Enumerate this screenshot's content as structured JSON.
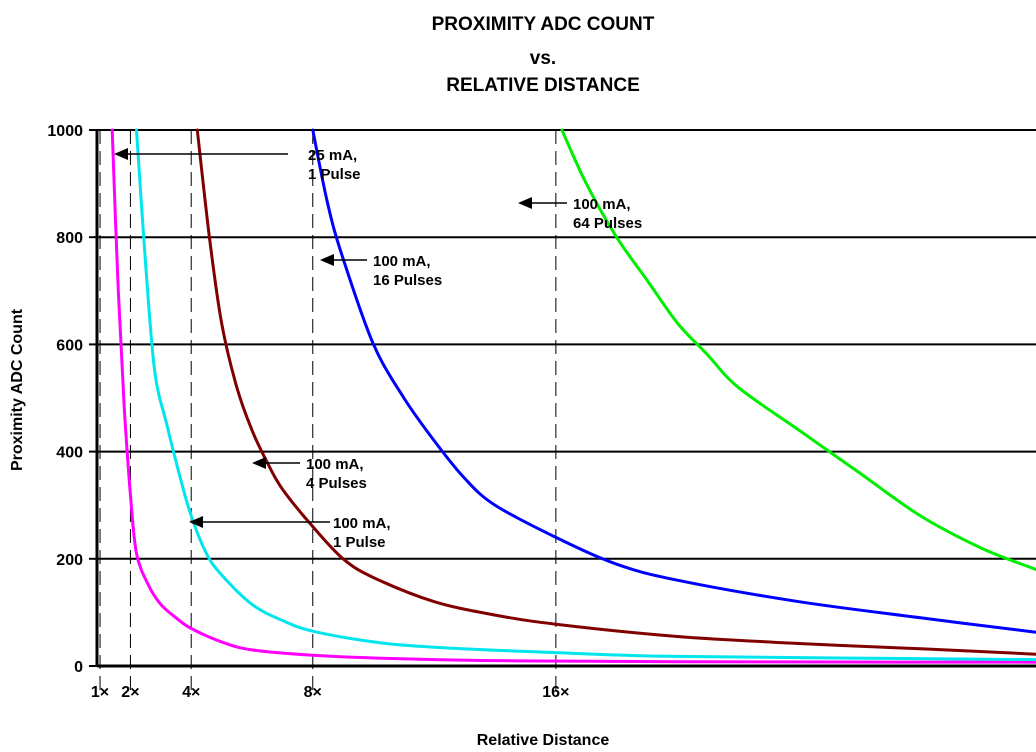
{
  "chart_data": {
    "type": "line",
    "title": [
      "PROXIMITY ADC COUNT",
      "vs.",
      "RELATIVE DISTANCE"
    ],
    "xlabel": "Relative Distance",
    "ylabel": "Proximity ADC Count",
    "xlim": [
      0.9,
      31.8
    ],
    "ylim": [
      0,
      1000
    ],
    "yticks": [
      0,
      200,
      400,
      600,
      800,
      1000
    ],
    "xticks": [
      {
        "value": 1,
        "label": "1×"
      },
      {
        "value": 2,
        "label": "2×"
      },
      {
        "value": 4,
        "label": "4×"
      },
      {
        "value": 8,
        "label": "8×"
      },
      {
        "value": 16,
        "label": "16×"
      }
    ],
    "grid": {
      "horizontal": true,
      "vertical_dashed_at": [
        1,
        2,
        4,
        8,
        16
      ]
    },
    "series": [
      {
        "name": "25 mA, 1 Pulse",
        "color": "#ff00ff",
        "points": [
          [
            1.4,
            1000
          ],
          [
            1.6,
            700
          ],
          [
            1.8,
            480
          ],
          [
            2.0,
            320
          ],
          [
            2.2,
            210
          ],
          [
            2.6,
            150
          ],
          [
            3.0,
            115
          ],
          [
            3.5,
            90
          ],
          [
            4.0,
            70
          ],
          [
            5.0,
            45
          ],
          [
            6.0,
            30
          ],
          [
            8.0,
            20
          ],
          [
            10.0,
            15
          ],
          [
            14.0,
            10
          ],
          [
            20.0,
            8
          ],
          [
            31.8,
            7
          ]
        ]
      },
      {
        "name": "100 mA, 1 Pulse",
        "color": "#00e5ee",
        "points": [
          [
            2.2,
            1000
          ],
          [
            2.5,
            750
          ],
          [
            2.8,
            550
          ],
          [
            3.2,
            450
          ],
          [
            3.6,
            360
          ],
          [
            4.0,
            280
          ],
          [
            4.5,
            210
          ],
          [
            5.0,
            170
          ],
          [
            6.0,
            115
          ],
          [
            7.0,
            85
          ],
          [
            8.0,
            65
          ],
          [
            10.0,
            45
          ],
          [
            12.0,
            35
          ],
          [
            16.0,
            25
          ],
          [
            20.0,
            18
          ],
          [
            31.8,
            12
          ]
        ]
      },
      {
        "name": "100 mA, 4 Pulses",
        "color": "#800000",
        "points": [
          [
            4.2,
            1000
          ],
          [
            4.6,
            800
          ],
          [
            5.0,
            640
          ],
          [
            5.5,
            520
          ],
          [
            6.0,
            440
          ],
          [
            6.5,
            380
          ],
          [
            7.0,
            330
          ],
          [
            8.0,
            260
          ],
          [
            9.0,
            200
          ],
          [
            10.0,
            165
          ],
          [
            12.0,
            120
          ],
          [
            14.0,
            95
          ],
          [
            16.0,
            78
          ],
          [
            20.0,
            55
          ],
          [
            24.0,
            42
          ],
          [
            28.0,
            32
          ],
          [
            31.8,
            22
          ]
        ]
      },
      {
        "name": "100 mA, 16 Pulses",
        "color": "#0000ff",
        "points": [
          [
            8.0,
            1000
          ],
          [
            8.5,
            860
          ],
          [
            9.0,
            760
          ],
          [
            10.0,
            600
          ],
          [
            11.0,
            500
          ],
          [
            12.0,
            420
          ],
          [
            13.0,
            350
          ],
          [
            14.0,
            300
          ],
          [
            16.0,
            240
          ],
          [
            18.0,
            190
          ],
          [
            20.0,
            160
          ],
          [
            24.0,
            120
          ],
          [
            28.0,
            90
          ],
          [
            31.8,
            63
          ]
        ]
      },
      {
        "name": "100 mA, 64 Pulses",
        "color": "#00ee00",
        "points": [
          [
            16.2,
            1000
          ],
          [
            17.0,
            900
          ],
          [
            18.0,
            800
          ],
          [
            19.0,
            720
          ],
          [
            20.0,
            640
          ],
          [
            21.0,
            580
          ],
          [
            22.0,
            520
          ],
          [
            24.0,
            440
          ],
          [
            26.0,
            360
          ],
          [
            28.0,
            280
          ],
          [
            30.0,
            220
          ],
          [
            31.8,
            180
          ]
        ]
      }
    ],
    "annotations": [
      {
        "lines": [
          "25 mA,",
          "1 Pulse"
        ],
        "target": "25 mA, 1 Pulse"
      },
      {
        "lines": [
          "100 mA,",
          "64 Pulses"
        ],
        "target": "100 mA, 64 Pulses"
      },
      {
        "lines": [
          "100 mA,",
          "16 Pulses"
        ],
        "target": "100 mA, 16 Pulses"
      },
      {
        "lines": [
          "100 mA,",
          "4 Pulses"
        ],
        "target": "100 mA, 4 Pulses"
      },
      {
        "lines": [
          "100 mA,",
          "1 Pulse"
        ],
        "target": "100 mA, 1 Pulse"
      }
    ]
  }
}
